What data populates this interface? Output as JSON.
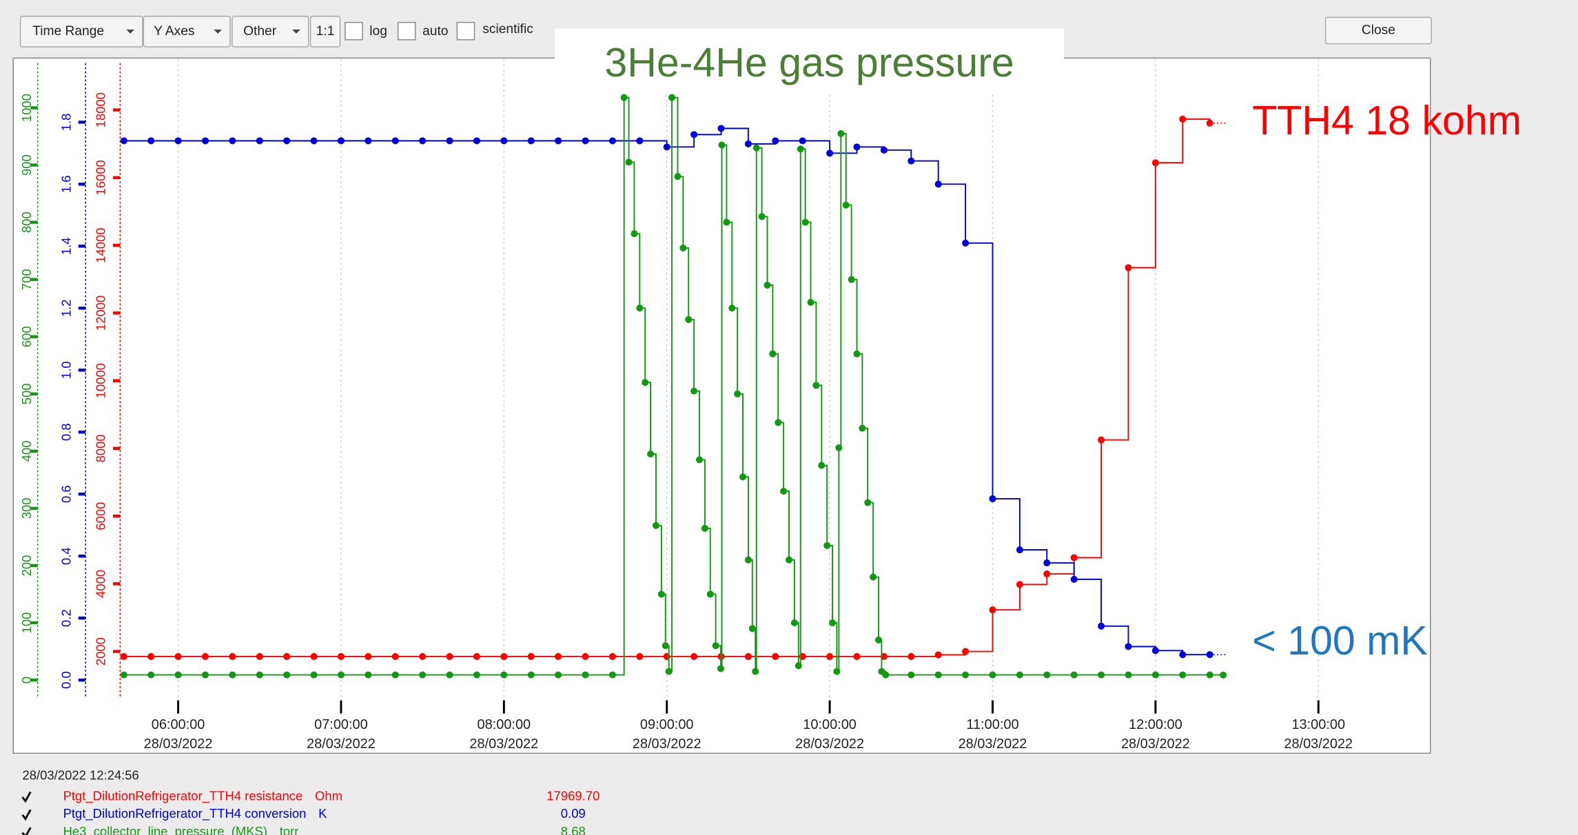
{
  "toolbar": {
    "time_range": "Time Range",
    "y_axes": "Y Axes",
    "other": "Other",
    "ratio": "1:1",
    "checkboxes": [
      "log",
      "auto",
      "scientific"
    ],
    "close": "Close"
  },
  "status": {
    "timestamp": "28/03/2022 12:24:56",
    "rows": [
      {
        "name": "Ptgt_DilutionRefrigerator_TTH4 resistance",
        "unit": "Ohm",
        "value": "17969.70",
        "color": "#ff0000"
      },
      {
        "name": "Ptgt_DilutionRefrigerator_TTH4 conversion",
        "unit": "K",
        "value": "0.09",
        "color": "#0000dd"
      },
      {
        "name": "He3_collector_line_pressure_(MKS)",
        "unit": "torr",
        "value": "8.68",
        "color": "#119911"
      }
    ]
  },
  "chart_data": {
    "type": "line",
    "step": true,
    "grid": true,
    "annotations": [
      {
        "text": "3He-4He gas pressure",
        "color": "#4a7f35"
      },
      {
        "text": "TTH4 18 kohm",
        "color": "#ff0000"
      },
      {
        "text": "< 100 mK",
        "color": "#1f77c4"
      }
    ],
    "xlim": [
      "05:39:00",
      "13:36:00"
    ],
    "xticks": [
      {
        "value": "06:00:00",
        "date": "28/03/2022"
      },
      {
        "value": "07:00:00",
        "date": "28/03/2022"
      },
      {
        "value": "08:00:00",
        "date": "28/03/2022"
      },
      {
        "value": "09:00:00",
        "date": "28/03/2022"
      },
      {
        "value": "10:00:00",
        "date": "28/03/2022"
      },
      {
        "value": "11:00:00",
        "date": "28/03/2022"
      },
      {
        "value": "12:00:00",
        "date": "28/03/2022"
      },
      {
        "value": "13:00:00",
        "date": "28/03/2022"
      }
    ],
    "axes": [
      {
        "color": "#119911",
        "lim": [
          -39,
          1087
        ],
        "ticks": [
          0,
          100,
          200,
          300,
          400,
          500,
          600,
          700,
          800,
          900,
          1000
        ]
      },
      {
        "color": "#0000dd",
        "lim": [
          -0.072,
          2.007
        ],
        "ticks": [
          {
            "value": 0,
            "label": "0.0"
          },
          0.2,
          0.4,
          0.6,
          0.8,
          {
            "value": 1,
            "label": "1.0"
          },
          1.2,
          1.4,
          1.6,
          1.8
        ]
      },
      {
        "color": "#ff0000",
        "lim": [
          496,
          19534
        ],
        "ticks": [
          2000,
          4000,
          6000,
          8000,
          10000,
          12000,
          14000,
          16000,
          18000
        ]
      }
    ],
    "series": [
      {
        "name": "Ptgt_DilutionRefrigerator_TTH4 resistance",
        "color": "#ff0000",
        "axis": 2,
        "x": [
          "05:40:00",
          "05:50:00",
          "06:00:00",
          "06:10:00",
          "06:20:00",
          "06:30:00",
          "06:40:00",
          "06:50:00",
          "07:00:00",
          "07:10:00",
          "07:20:00",
          "07:30:00",
          "07:40:00",
          "07:50:00",
          "08:00:00",
          "08:10:00",
          "08:20:00",
          "08:30:00",
          "08:40:00",
          "08:50:00",
          "09:00:00",
          "09:10:00",
          "09:20:00",
          "09:30:00",
          "09:40:00",
          "09:50:00",
          "10:00:00",
          "10:10:00",
          "10:20:00",
          "10:30:00",
          "10:40:00",
          "10:50:00",
          "11:00:00",
          "11:10:00",
          "11:20:00",
          "11:30:00",
          "11:40:00",
          "11:50:00",
          "12:00:00",
          "12:10:00",
          "12:20:00"
        ],
        "values": [
          1850,
          1850,
          1850,
          1850,
          1850,
          1850,
          1850,
          1850,
          1850,
          1850,
          1850,
          1850,
          1850,
          1850,
          1850,
          1850,
          1850,
          1850,
          1850,
          1850,
          1850,
          1850,
          1850,
          1850,
          1850,
          1850,
          1850,
          1850,
          1850,
          1850,
          1900,
          2000,
          3230,
          3980,
          4290,
          4770,
          8250,
          13340,
          16440,
          17730,
          17610
        ]
      },
      {
        "name": "Ptgt_DilutionRefrigerator_TTH4 conversion",
        "color": "#0000dd",
        "axis": 1,
        "x": [
          "05:40:00",
          "05:50:00",
          "06:00:00",
          "06:10:00",
          "06:20:00",
          "06:30:00",
          "06:40:00",
          "06:50:00",
          "07:00:00",
          "07:10:00",
          "07:20:00",
          "07:30:00",
          "07:40:00",
          "07:50:00",
          "08:00:00",
          "08:10:00",
          "08:20:00",
          "08:30:00",
          "08:40:00",
          "08:50:00",
          "09:00:00",
          "09:10:00",
          "09:20:00",
          "09:30:00",
          "09:40:00",
          "09:50:00",
          "10:00:00",
          "10:10:00",
          "10:20:00",
          "10:30:00",
          "10:40:00",
          "10:50:00",
          "11:00:00",
          "11:10:00",
          "11:20:00",
          "11:30:00",
          "11:40:00",
          "11:50:00",
          "12:00:00",
          "12:10:00",
          "12:20:00"
        ],
        "values": [
          1.74,
          1.74,
          1.74,
          1.74,
          1.74,
          1.74,
          1.74,
          1.74,
          1.74,
          1.74,
          1.74,
          1.74,
          1.74,
          1.74,
          1.74,
          1.74,
          1.74,
          1.74,
          1.74,
          1.74,
          1.72,
          1.76,
          1.78,
          1.73,
          1.74,
          1.74,
          1.7,
          1.72,
          1.71,
          1.675,
          1.6,
          1.41,
          0.585,
          0.42,
          0.378,
          0.325,
          0.174,
          0.108,
          0.095,
          0.082,
          0.082
        ]
      },
      {
        "name": "He3_collector_line_pressure_(MKS)",
        "color": "#119911",
        "axis": 0,
        "x": [
          "05:40:00",
          "05:50:00",
          "06:00:00",
          "06:10:00",
          "06:20:00",
          "06:30:00",
          "06:40:00",
          "06:50:00",
          "07:00:00",
          "07:10:00",
          "07:20:00",
          "07:30:00",
          "07:40:00",
          "07:50:00",
          "08:00:00",
          "08:10:00",
          "08:20:00",
          "08:30:00",
          "08:40:00",
          "08:44:15",
          "08:46:00",
          "08:48:00",
          "08:50:00",
          "08:52:00",
          "08:54:00",
          "08:56:00",
          "08:58:00",
          "08:59:30",
          "09:00:45",
          "09:01:52",
          "09:04:00",
          "09:06:00",
          "09:08:00",
          "09:10:00",
          "09:12:00",
          "09:14:00",
          "09:16:00",
          "09:18:00",
          "09:19:52",
          "09:20:15",
          "09:22:00",
          "09:24:00",
          "09:26:00",
          "09:28:00",
          "09:30:00",
          "09:31:30",
          "09:32:37",
          "09:33:00",
          "09:35:00",
          "09:37:00",
          "09:39:00",
          "09:41:00",
          "09:43:00",
          "09:45:00",
          "09:47:00",
          "09:48:30",
          "09:49:15",
          "09:51:00",
          "09:53:00",
          "09:55:00",
          "09:57:00",
          "09:59:00",
          "10:01:00",
          "10:02:37",
          "10:03:22",
          "10:04:07",
          "10:06:00",
          "10:08:00",
          "10:10:00",
          "10:12:00",
          "10:14:00",
          "10:16:00",
          "10:18:00",
          "10:19:07",
          "10:20:37",
          "10:30:00",
          "10:40:00",
          "10:50:00",
          "11:00:00",
          "11:10:00",
          "11:20:00",
          "11:30:00",
          "11:40:00",
          "11:50:00",
          "12:00:00",
          "12:10:00",
          "12:20:00",
          "12:24:56"
        ],
        "values": [
          9,
          9,
          9,
          9,
          9,
          9,
          9,
          9,
          9,
          9,
          9,
          9,
          9,
          9,
          9,
          9,
          9,
          9,
          9,
          1018,
          905,
          780,
          650,
          520,
          395,
          270,
          150,
          60,
          15,
          1018,
          880,
          755,
          630,
          505,
          385,
          265,
          150,
          60,
          20,
          935,
          800,
          650,
          500,
          355,
          210,
          90,
          15,
          930,
          810,
          690,
          570,
          450,
          330,
          210,
          100,
          25,
          928,
          800,
          660,
          515,
          375,
          235,
          100,
          15,
          406,
          955,
          830,
          700,
          570,
          440,
          310,
          180,
          70,
          15,
          9,
          9,
          9,
          9,
          9,
          9,
          9,
          9,
          9,
          9,
          9,
          9,
          9,
          8.68
        ]
      }
    ]
  }
}
